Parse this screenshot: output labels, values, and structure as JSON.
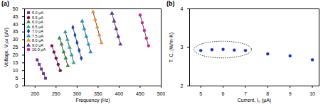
{
  "chart_data": [
    {
      "type": "scatter",
      "title": "(a)",
      "x_label": "Frequency (Hz)",
      "y_label": "Voltage, V₃ω (μV)",
      "xlim": [
        175,
        500
      ],
      "xticks": [
        200,
        250,
        300,
        350,
        400,
        450,
        500
      ],
      "ylim": [
        0,
        50
      ],
      "yticks": [
        0,
        5,
        10,
        15,
        20,
        25,
        30,
        35,
        40,
        45,
        50
      ],
      "grid": false,
      "legend": "top-left",
      "series": [
        {
          "name": "5.0 μA",
          "color": "#7030a0",
          "marker": "square",
          "x": [
            205,
            210,
            215,
            220,
            225
          ],
          "values": [
            17,
            14,
            11,
            8,
            5
          ]
        },
        {
          "name": "5.5 μA",
          "color": "#8b1040",
          "marker": "circle",
          "x": [
            240,
            245,
            250,
            255,
            260
          ],
          "values": [
            26,
            22,
            18,
            14,
            10
          ]
        },
        {
          "name": "6.0 μA",
          "color": "#2e8b3e",
          "marker": "triangle",
          "x": [
            258,
            263,
            268,
            273,
            278
          ],
          "values": [
            31,
            27,
            22,
            18,
            13
          ]
        },
        {
          "name": "6.5 μA",
          "color": "#1fa8a0",
          "marker": "triangle",
          "x": [
            272,
            277,
            282,
            287,
            292
          ],
          "values": [
            35,
            30,
            25,
            20,
            15
          ]
        },
        {
          "name": "7.0 μA",
          "color": "#2040c0",
          "marker": "diamond",
          "x": [
            290,
            295,
            300,
            305,
            310
          ],
          "values": [
            38,
            33,
            28,
            23,
            18
          ]
        },
        {
          "name": "7.5 μA",
          "color": "#1e90d0",
          "marker": "triangle",
          "x": [
            312,
            317,
            322,
            327,
            332
          ],
          "values": [
            42,
            37,
            32,
            27,
            22
          ]
        },
        {
          "name": "8.0 μA",
          "color": "#f0901e",
          "marker": "triangle",
          "x": [
            338,
            343,
            348,
            353,
            358
          ],
          "values": [
            48,
            43,
            38,
            33,
            28
          ]
        },
        {
          "name": "9.0 μA",
          "color": "#6a2aa0",
          "marker": "triangle",
          "x": [
            383,
            388,
            393,
            398,
            403
          ],
          "values": [
            47,
            42,
            37,
            32,
            27
          ]
        },
        {
          "name": "10.0 μA",
          "color": "#d020a0",
          "marker": "circle",
          "x": [
            450,
            455,
            460,
            465,
            470
          ],
          "values": [
            46,
            41,
            36,
            31,
            26
          ]
        }
      ]
    },
    {
      "type": "scatter",
      "title": "(b)",
      "x_label": "Current, I₀ (μA)",
      "y_label": "T. C. (W/m·K)",
      "xlim": [
        4.5,
        10.3
      ],
      "xticks": [
        5,
        6,
        7,
        8,
        9,
        10
      ],
      "ylim": [
        2,
        4
      ],
      "yticks": [
        2,
        3,
        4
      ],
      "grid": false,
      "series": [
        {
          "color": "#1f2fd0",
          "marker": "circle",
          "x": [
            5.0,
            5.5,
            6.0,
            6.5,
            7.0,
            8.0,
            9.0,
            10.0
          ],
          "values": [
            2.92,
            2.94,
            2.95,
            2.93,
            2.92,
            2.83,
            2.78,
            2.68
          ]
        }
      ]
    }
  ]
}
